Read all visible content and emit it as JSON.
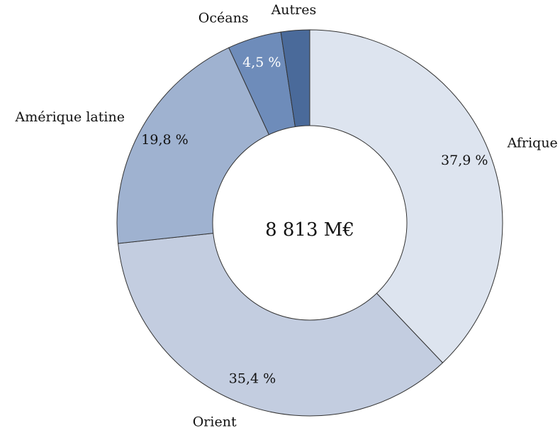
{
  "chart_data": {
    "type": "donut",
    "categories": [
      "Afrique",
      "Orient",
      "Amérique latine",
      "Océans",
      "Autres"
    ],
    "values": [
      37.9,
      35.4,
      19.8,
      4.5,
      2.4
    ],
    "value_labels": [
      "37,9 %",
      "35,4 %",
      "19,8 %",
      "4,5 %",
      null
    ],
    "colors": [
      "#dde4ef",
      "#c3cde0",
      "#9fb2d0",
      "#6e8cba",
      "#4a6a9a"
    ],
    "center_label": "8 813 M€"
  }
}
